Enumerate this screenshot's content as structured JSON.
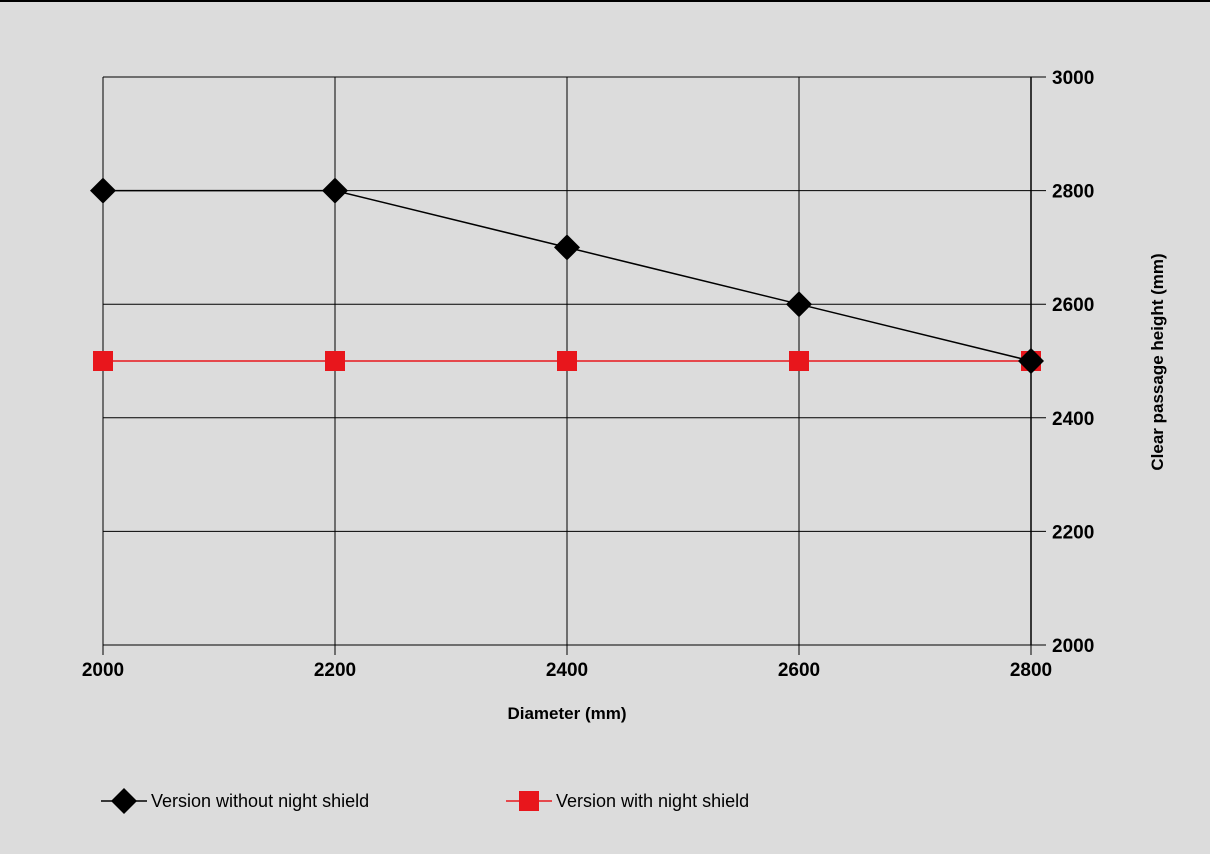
{
  "chart_data": {
    "type": "line",
    "title": "",
    "xlabel": "Diameter (mm)",
    "ylabel": "Clear passage height (mm)",
    "x": [
      2000,
      2200,
      2400,
      2600,
      2800
    ],
    "x_tick_labels": [
      "2000",
      "2200",
      "2400",
      "2600",
      "2800"
    ],
    "y_tick_labels": [
      "3000",
      "2800",
      "2600",
      "2400",
      "2200",
      "2000"
    ],
    "xlim": [
      2000,
      2800
    ],
    "ylim": [
      2000,
      3000
    ],
    "y_axis_position": "right",
    "grid": true,
    "legend_position": "bottom",
    "series": [
      {
        "name": "Version without night shield",
        "values": [
          2800,
          2800,
          2700,
          2600,
          2500
        ],
        "color": "#000000",
        "marker": "diamond"
      },
      {
        "name": "Version with night shield",
        "values": [
          2500,
          2500,
          2500,
          2500,
          2500
        ],
        "color": "#e8161c",
        "marker": "square"
      }
    ]
  }
}
